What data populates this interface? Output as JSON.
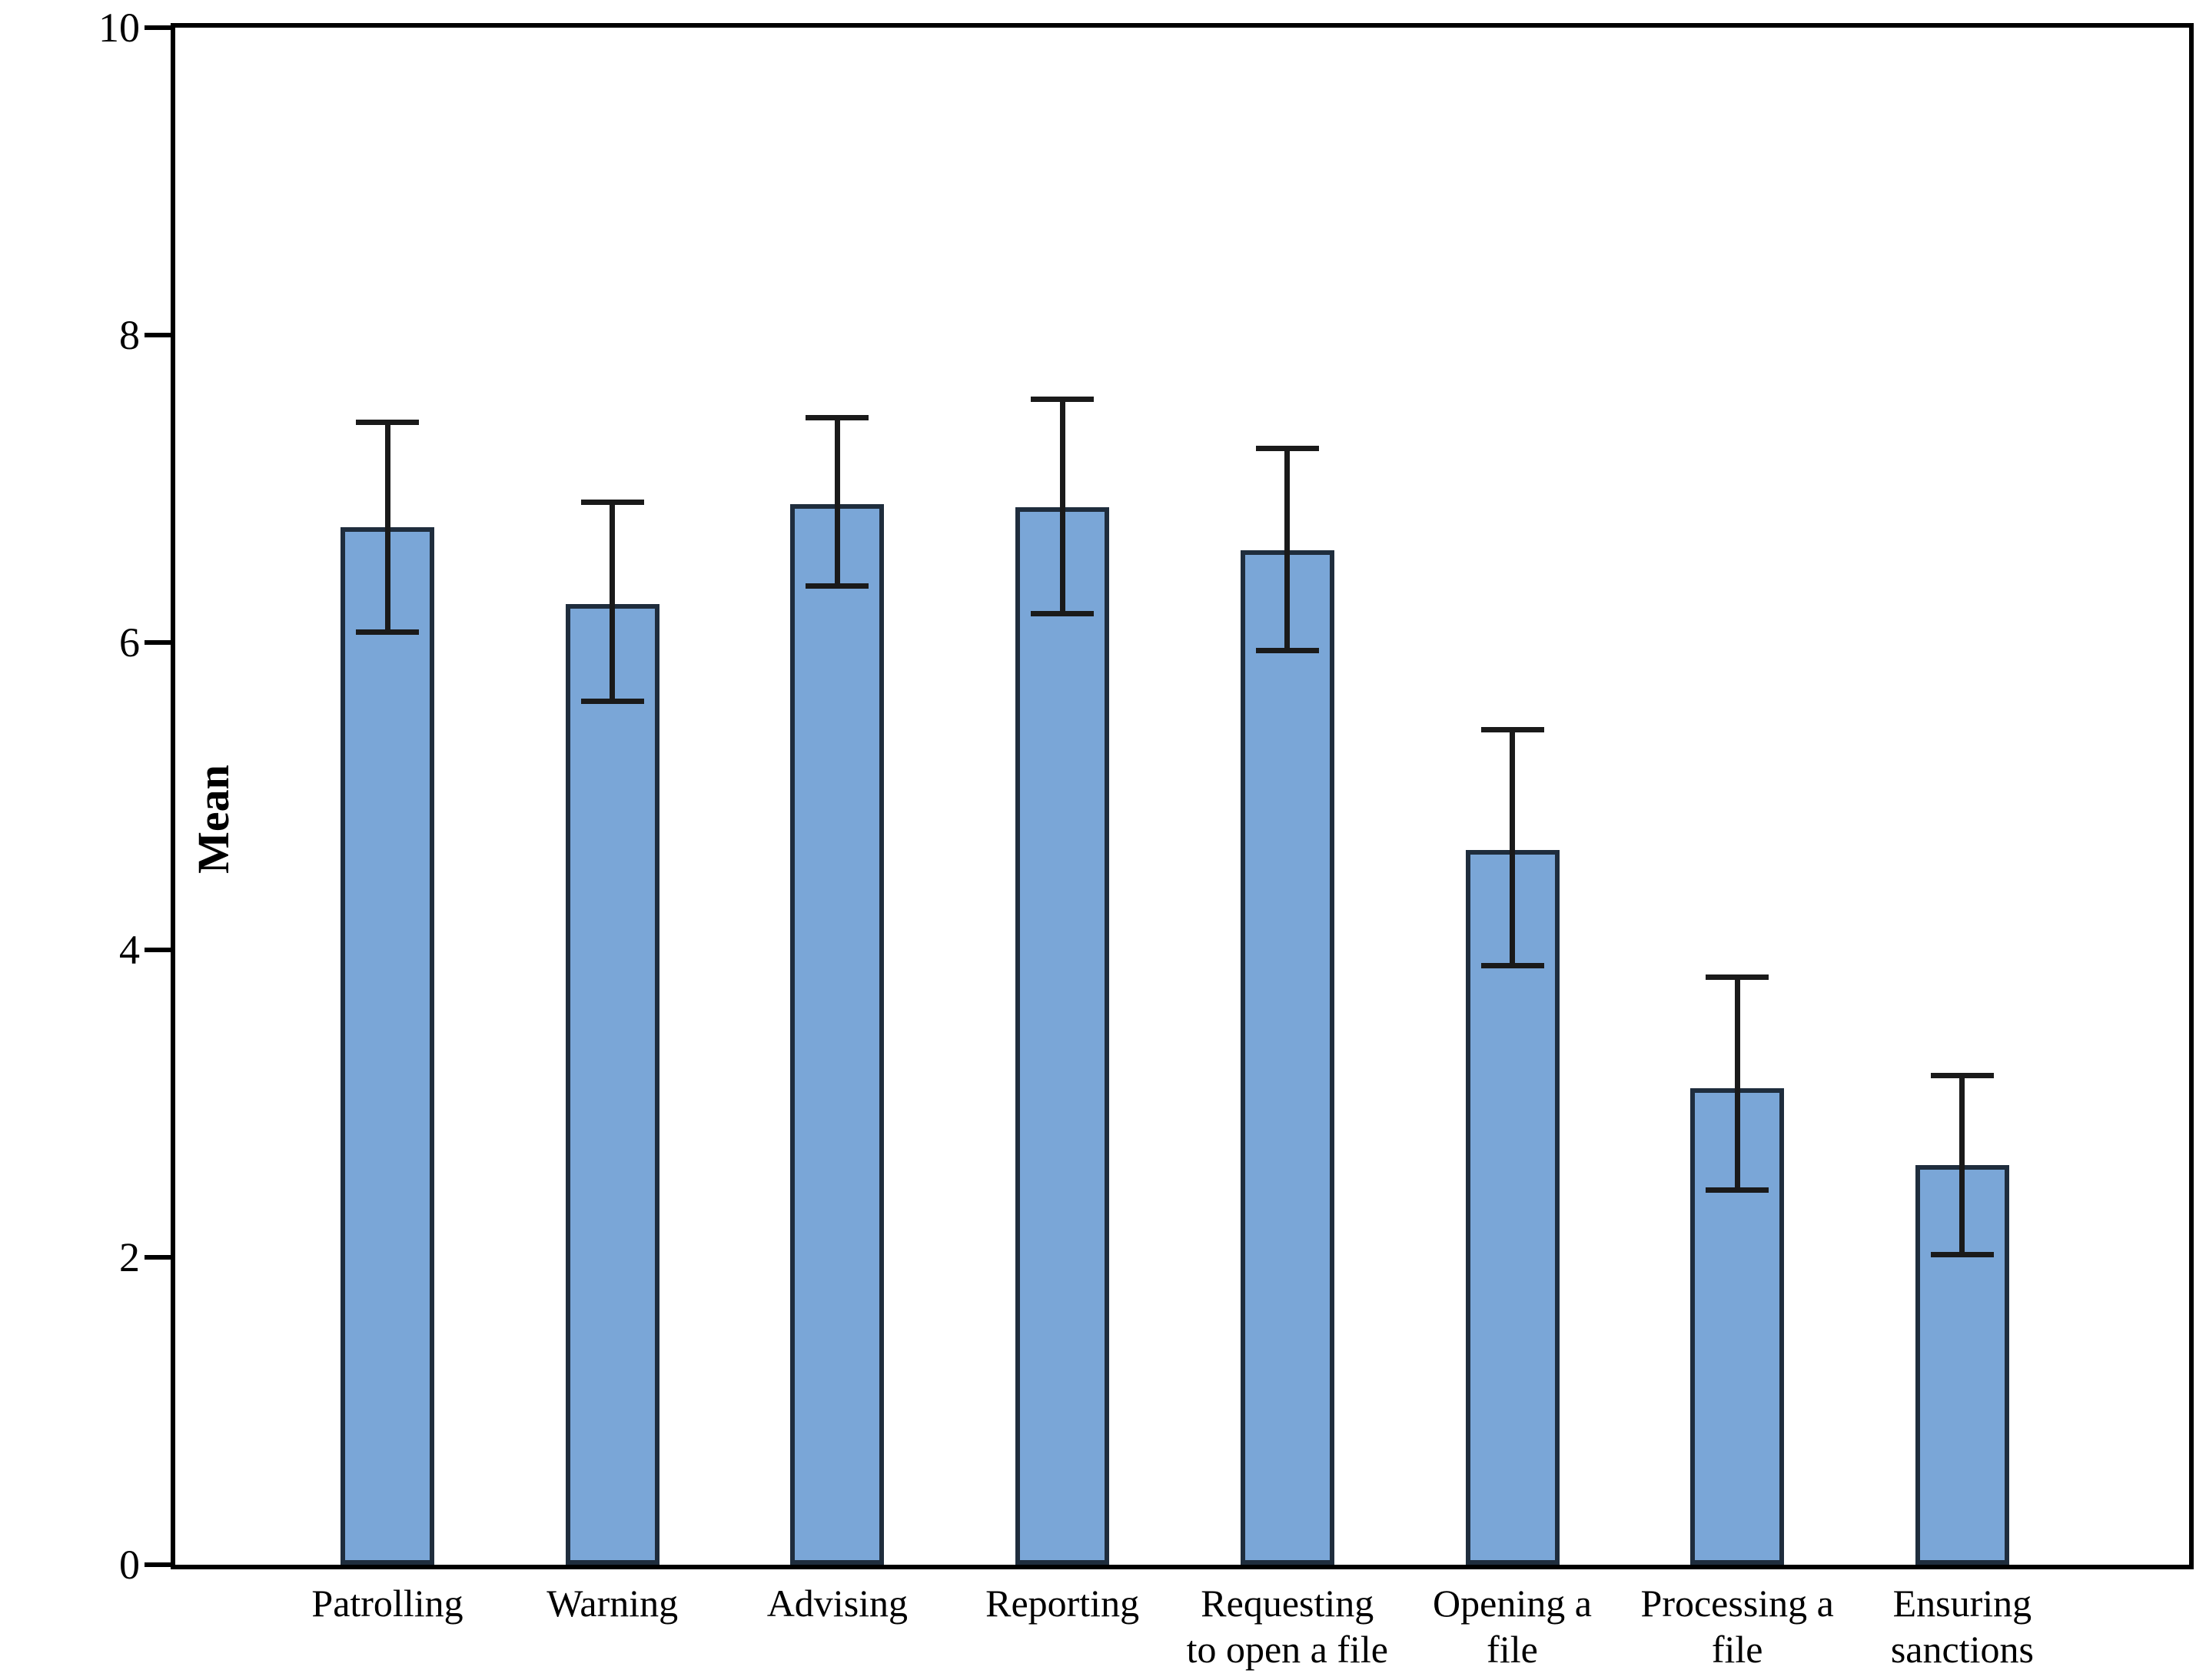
{
  "chart_data": {
    "type": "bar",
    "title": "",
    "xlabel": "",
    "ylabel": "Mean",
    "ylim": [
      0,
      10
    ],
    "yticks": [
      0,
      2,
      4,
      6,
      8,
      10
    ],
    "grid": false,
    "legend": null,
    "categories": [
      "Patrolling",
      "Warning",
      "Advising",
      "Reporting",
      "Requesting\nto open a file",
      "Opening a\nfile",
      "Processing a\nfile",
      "Ensuring\nsanctions"
    ],
    "values": [
      6.75,
      6.25,
      6.9,
      6.88,
      6.6,
      4.65,
      3.1,
      2.6
    ],
    "error_low": [
      6.05,
      5.6,
      6.35,
      6.17,
      5.93,
      3.88,
      2.42,
      2.0
    ],
    "error_high": [
      7.45,
      6.93,
      7.48,
      7.6,
      7.28,
      5.45,
      3.84,
      3.2
    ],
    "colors": {
      "bar_fill": "#7aa6d7",
      "bar_border": "#1f2d3d",
      "error_bar": "#1a1a1a",
      "axis": "#000000",
      "background": "#ffffff"
    }
  }
}
